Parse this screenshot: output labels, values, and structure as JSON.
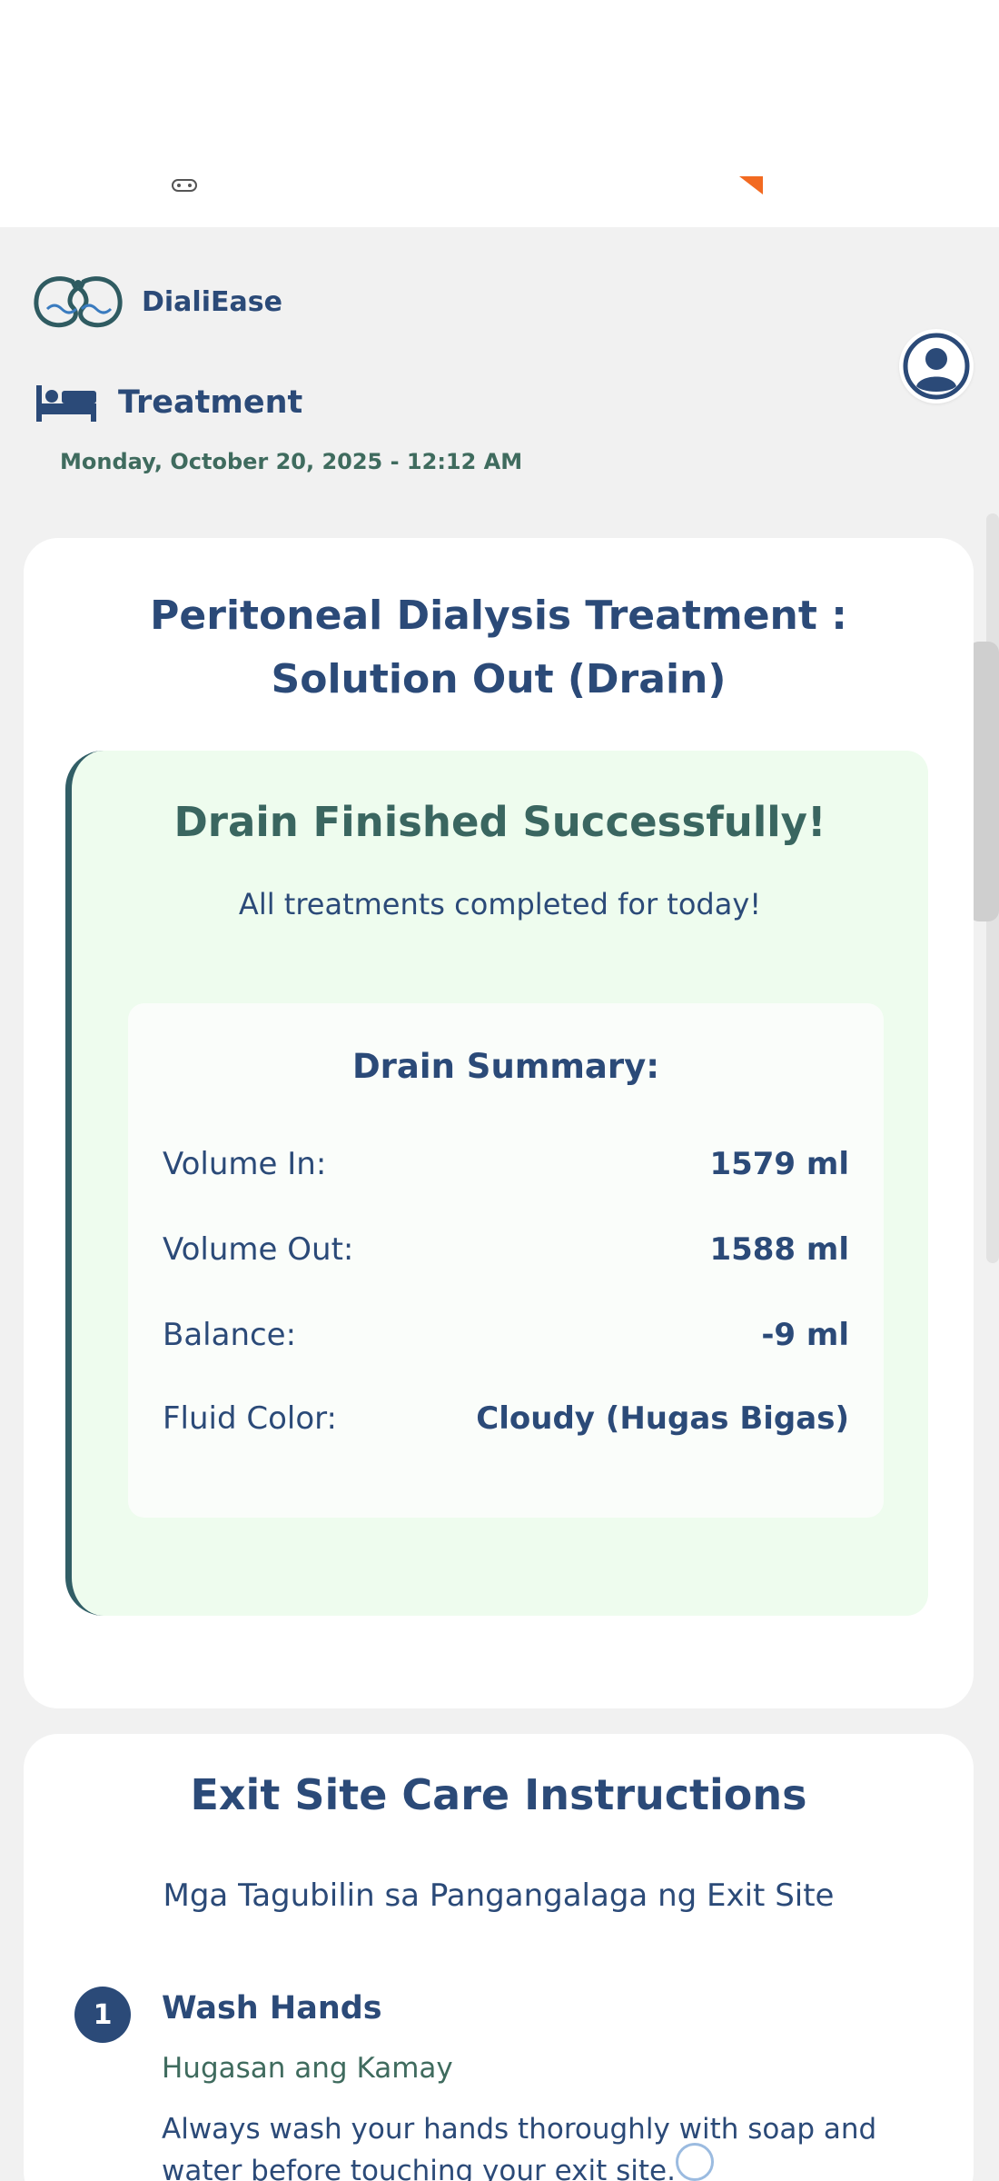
{
  "app": {
    "name": "DialiEase"
  },
  "header": {
    "title": "Treatment",
    "datetime": "Monday, October 20, 2025 - 12:12 AM"
  },
  "treatment_card": {
    "title_line1": "Peritoneal Dialysis Treatment :",
    "title_line2": "Solution Out (Drain)",
    "success": {
      "title": "Drain Finished Successfully!",
      "subtitle": "All treatments completed for today!",
      "summary": {
        "title": "Drain Summary:",
        "rows": [
          {
            "label": "Volume In:",
            "value": "1579 ml"
          },
          {
            "label": "Volume Out:",
            "value": "1588 ml"
          },
          {
            "label": "Balance:",
            "value": "-9 ml"
          },
          {
            "label": "Fluid Color:",
            "value": "Cloudy (Hugas Bigas)"
          }
        ]
      }
    }
  },
  "exit_care": {
    "title": "Exit Site Care Instructions",
    "subtitle": "Mga Tagubilin sa Pangangalaga ng Exit Site",
    "steps": [
      {
        "number": "1",
        "title": "Wash Hands",
        "subtitle": "Hugasan ang Kamay",
        "description": "Always wash your hands thoroughly with soap and water before touching your exit site."
      }
    ]
  },
  "icons": {
    "logo": "kidney-logo-icon",
    "profile": "user-avatar-icon",
    "treatment": "bed-icon"
  },
  "colors": {
    "primary": "#2b4a78",
    "accent_green": "#3a6660",
    "success_bg": "#eefcee",
    "page_bg": "#f1f1f1"
  }
}
